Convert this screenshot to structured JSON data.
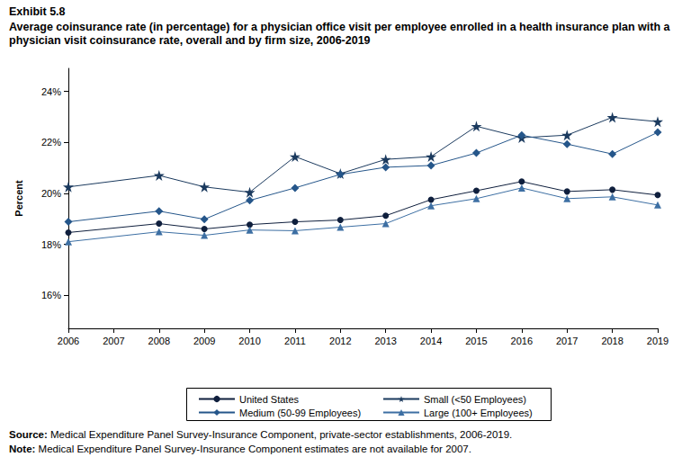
{
  "chart_data": {
    "type": "line",
    "title": "Exhibit 5.8",
    "subtitle": "Average coinsurance rate (in percentage) for a physician office visit per employee enrolled in a health insurance plan with a physician visit coinsurance rate, overall and by firm size, 2006-2019",
    "y_label": "Percent",
    "x": [
      2006,
      2008,
      2009,
      2010,
      2011,
      2012,
      2013,
      2014,
      2015,
      2016,
      2017,
      2018,
      2019
    ],
    "xlim": [
      2006,
      2019
    ],
    "xticks": [
      2006,
      2007,
      2008,
      2009,
      2010,
      2011,
      2012,
      2013,
      2014,
      2015,
      2016,
      2017,
      2018,
      2019
    ],
    "ylim": [
      14.7,
      24.9
    ],
    "yticks": [
      {
        "value": 16,
        "label": "16%"
      },
      {
        "value": 18,
        "label": "18%"
      },
      {
        "value": 20,
        "label": "20%"
      },
      {
        "value": 22,
        "label": "22%"
      },
      {
        "value": 24,
        "label": "24%"
      }
    ],
    "grid": false,
    "legend": "bottom",
    "series": [
      {
        "name": "United States",
        "color": "#0f1f3d",
        "marker": "circle",
        "line_style": "solid",
        "values": [
          18.46,
          18.81,
          18.6,
          18.77,
          18.88,
          18.95,
          19.12,
          19.75,
          20.1,
          20.46,
          20.07,
          20.14,
          19.93
        ]
      },
      {
        "name": "Small (<50 Employees)",
        "color": "#1b3a5e",
        "marker": "star",
        "line_style": "solid",
        "values": [
          20.25,
          20.7,
          20.25,
          20.04,
          21.44,
          20.77,
          21.33,
          21.44,
          22.63,
          22.18,
          22.28,
          22.98,
          22.81
        ]
      },
      {
        "name": "Medium (50-99 Employees)",
        "color": "#25568a",
        "marker": "diamond",
        "line_style": "solid",
        "values": [
          18.88,
          19.3,
          18.98,
          19.72,
          20.21,
          20.74,
          21.02,
          21.09,
          21.58,
          22.28,
          21.93,
          21.54,
          22.39
        ]
      },
      {
        "name": "Large (100+ Employees)",
        "color": "#3d6fa3",
        "marker": "triangle",
        "line_style": "solid",
        "values": [
          18.1,
          18.49,
          18.35,
          18.56,
          18.53,
          18.67,
          18.81,
          19.51,
          19.79,
          20.21,
          19.79,
          19.86,
          19.54
        ]
      }
    ],
    "annotations": [
      {
        "label": "Source:",
        "text": "Medical Expenditure Panel Survey-Insurance Component, private-sector establishments, 2006-2019."
      },
      {
        "label": "Note:",
        "text": "Medical Expenditure Panel Survey-Insurance Component estimates are not available for 2007."
      }
    ]
  }
}
